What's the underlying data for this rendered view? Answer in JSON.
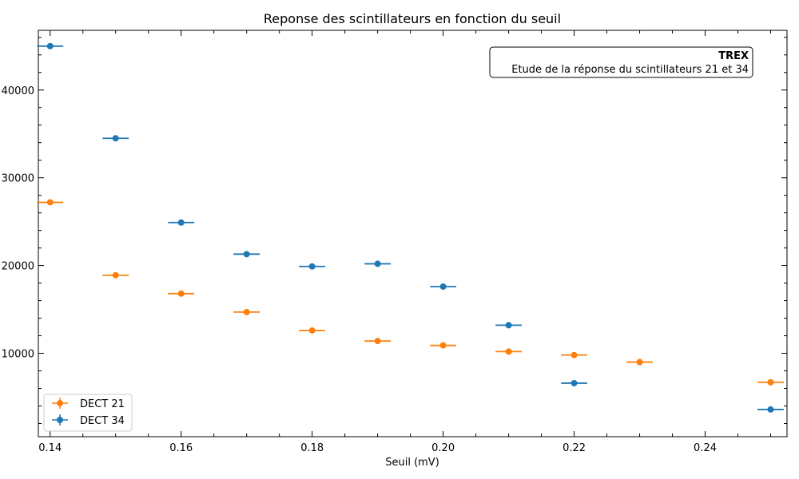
{
  "chart_data": {
    "type": "scatter",
    "title": "Reponse des scintillateurs en fonction du seuil",
    "xlabel": "Seuil (mV)",
    "ylabel": "",
    "xlim": [
      0.1382,
      0.2525
    ],
    "ylim": [
      500,
      46800
    ],
    "x_ticks": [
      0.14,
      0.16,
      0.18,
      0.2,
      0.22,
      0.24
    ],
    "x_tick_labels": [
      "0.14",
      "0.16",
      "0.18",
      "0.20",
      "0.22",
      "0.24"
    ],
    "y_ticks": [
      10000,
      20000,
      30000,
      40000
    ],
    "y_tick_labels": [
      "10000",
      "20000",
      "30000",
      "40000"
    ],
    "x_error": 0.002,
    "grid": false,
    "legend_position": "lower-left",
    "annotation": {
      "title": "TREX",
      "text": "Etude de la réponse du scintillateurs 21 et 34",
      "position": "top-right"
    },
    "series": [
      {
        "name": "DECT 21",
        "color": "#ff7f0e",
        "x": [
          0.14,
          0.15,
          0.16,
          0.17,
          0.18,
          0.19,
          0.2,
          0.21,
          0.22,
          0.23,
          0.25
        ],
        "y": [
          27200,
          18900,
          16800,
          14700,
          12600,
          11400,
          10900,
          10200,
          9800,
          9000,
          6700
        ]
      },
      {
        "name": "DECT 34",
        "color": "#1f77b4",
        "x": [
          0.14,
          0.15,
          0.16,
          0.17,
          0.18,
          0.19,
          0.2,
          0.21,
          0.22,
          0.25
        ],
        "y": [
          45000,
          34500,
          24900,
          21300,
          19900,
          20200,
          17600,
          13200,
          6600,
          3600
        ]
      }
    ]
  }
}
